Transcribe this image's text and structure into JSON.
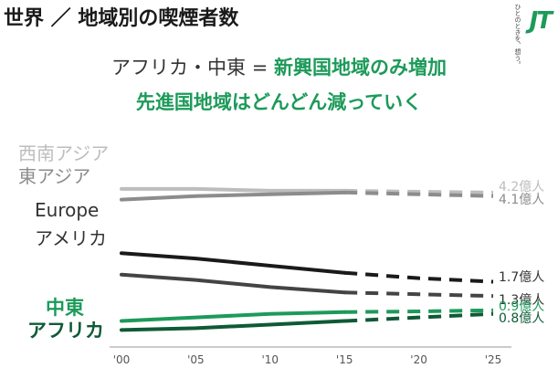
{
  "header": {
    "title": "世界 ／ 地域別の喫煙者数",
    "logo_tagline": "ひとのときを、想う。",
    "logo_mark": "JT"
  },
  "headline": {
    "line1_plain": "アフリカ・中東 = ",
    "line1_accent": "新興国地域のみ増加",
    "line2": "先進国地域はどんどん減っていく"
  },
  "colors": {
    "light_gray": "#bdbdbd",
    "mid_gray": "#8c8c8c",
    "black": "#1a1a1a",
    "dark_gray": "#444444",
    "green": "#1d9a5a",
    "dark_green": "#0f5a36"
  },
  "chart_data": {
    "type": "line",
    "x": [
      2000,
      2005,
      2010,
      2015,
      2020,
      2025
    ],
    "x_tick_labels": [
      "'00",
      "'05",
      "'10",
      "'15",
      "'20",
      "'25"
    ],
    "projection_from": 2015,
    "ylim": [
      0,
      5.5
    ],
    "series": [
      {
        "name": "西南アジア",
        "values": [
          4.3,
          4.3,
          4.25,
          4.25,
          4.22,
          4.2
        ],
        "end_label": "4.2億人",
        "color": "#bdbdbd",
        "label_color": "#bdbdbd",
        "label_bold": false
      },
      {
        "name": "東アジア",
        "values": [
          4.0,
          4.1,
          4.15,
          4.2,
          4.15,
          4.1
        ],
        "end_label": "4.1億人",
        "color": "#8c8c8c",
        "label_color": "#8c8c8c",
        "label_bold": false
      },
      {
        "name": "Europe",
        "values": [
          2.5,
          2.35,
          2.15,
          1.95,
          1.8,
          1.7
        ],
        "end_label": "1.7億人",
        "color": "#1a1a1a",
        "label_color": "#333333",
        "label_bold": false
      },
      {
        "name": "アメリカ",
        "values": [
          1.9,
          1.75,
          1.55,
          1.4,
          1.35,
          1.3
        ],
        "end_label": "1.3億人",
        "color": "#444444",
        "label_color": "#333333",
        "label_bold": false
      },
      {
        "name": "中東",
        "values": [
          0.6,
          0.7,
          0.8,
          0.85,
          0.87,
          0.9
        ],
        "end_label": "0.9億人",
        "color": "#1d9a5a",
        "label_color": "#1d9a5a",
        "label_bold": true
      },
      {
        "name": "アフリカ",
        "values": [
          0.35,
          0.4,
          0.5,
          0.6,
          0.7,
          0.8
        ],
        "end_label": "0.8億人",
        "color": "#0f5a36",
        "label_color": "#0f5a36",
        "label_bold": true
      }
    ]
  }
}
